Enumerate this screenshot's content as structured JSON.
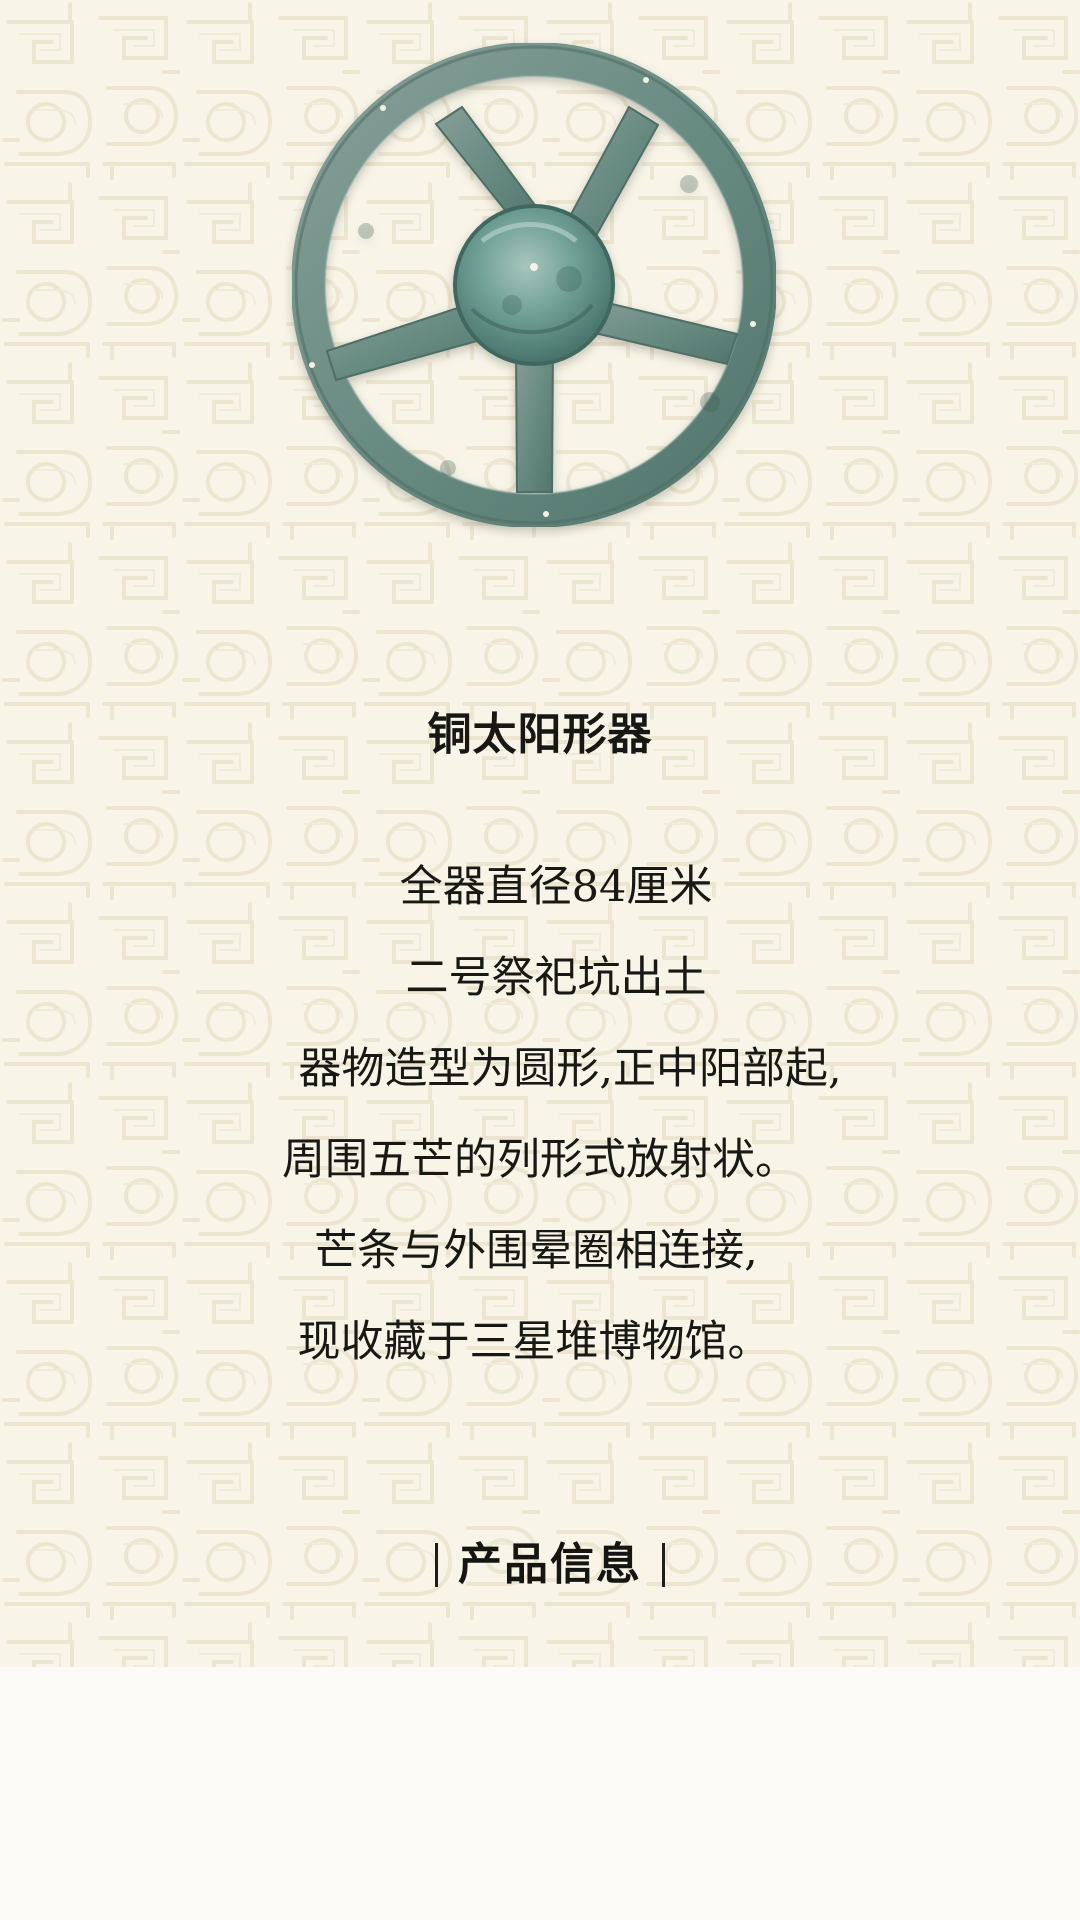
{
  "artifact": {
    "title": "铜太阳形器"
  },
  "description": {
    "lines": [
      "全器直径84厘米",
      "二号祭祀坑出土",
      "器物造型为圆形,正中阳部起,",
      "周围五芒的列形式放射状。",
      "芒条与外围晕圈相连接,",
      "现收藏于三星堆博物馆。"
    ]
  },
  "section": {
    "heading": "产品信息"
  },
  "colors": {
    "paper": "#f8f5e8",
    "pattern": "#ece5cf",
    "bronze": "#6f8e83",
    "text": "#171714",
    "lower_area": "#fbfaf7"
  },
  "icons": {
    "artifact": "bronze-sun-disc-icon"
  }
}
